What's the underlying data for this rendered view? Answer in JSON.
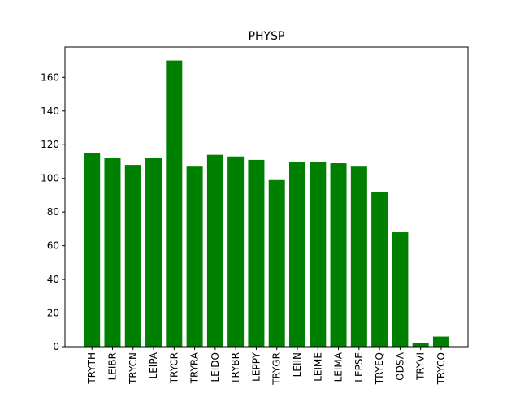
{
  "chart_data": {
    "type": "bar",
    "title": "PHYSP",
    "xlabel": "",
    "ylabel": "",
    "categories": [
      "TRYTH",
      "LEIBR",
      "TRYCN",
      "LEIPA",
      "TRYCR",
      "TRYRA",
      "LEIDO",
      "TRYBR",
      "LEPPY",
      "TRYGR",
      "LEIIN",
      "LEIME",
      "LEIMA",
      "LEPSE",
      "TRYEQ",
      "ODSA",
      "TRYVI",
      "TRYCO"
    ],
    "values": [
      115,
      112,
      108,
      112,
      170,
      107,
      114,
      113,
      111,
      99,
      110,
      110,
      109,
      107,
      92,
      68,
      2,
      6
    ],
    "ylim": [
      0,
      178
    ],
    "yticks": [
      0,
      20,
      40,
      60,
      80,
      100,
      120,
      140,
      160
    ],
    "grid": false,
    "bar_color": "#008000"
  }
}
